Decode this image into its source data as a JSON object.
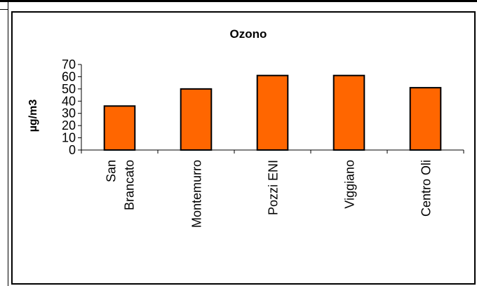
{
  "chart_data": {
    "type": "bar",
    "title": "Ozono",
    "xlabel": "",
    "ylabel": "µg/m3",
    "categories": [
      [
        "San",
        "Brancato"
      ],
      [
        "Montemurro"
      ],
      [
        "Pozzi ENI"
      ],
      [
        "Viggiano"
      ],
      [
        "Centro Oli"
      ]
    ],
    "values": [
      36,
      50,
      61,
      61,
      51
    ],
    "ylim": [
      0,
      70
    ],
    "yticks": [
      0,
      10,
      20,
      30,
      40,
      50,
      60,
      70
    ],
    "bar_color": "#FF6600",
    "grid": false,
    "legend": "none"
  }
}
